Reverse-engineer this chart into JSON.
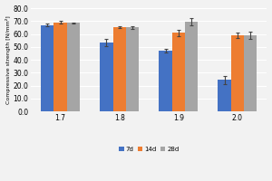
{
  "categories": [
    "1.7",
    "1.8",
    "1.9",
    "2.0"
  ],
  "series": {
    "7d": [
      67.0,
      53.5,
      47.0,
      24.5
    ],
    "14d": [
      69.0,
      65.5,
      61.0,
      59.0
    ],
    "28d": [
      68.5,
      65.0,
      69.5,
      59.0
    ]
  },
  "errors": {
    "7d": [
      1.2,
      3.0,
      1.5,
      3.0
    ],
    "14d": [
      1.0,
      0.8,
      2.5,
      2.0
    ],
    "28d": [
      0.5,
      0.8,
      2.5,
      2.5
    ]
  },
  "colors": {
    "7d": "#4472C4",
    "14d": "#ED7D31",
    "28d": "#A5A5A5"
  },
  "legend_labels": [
    "7d",
    "14d",
    "28d"
  ],
  "ylabel": "Compressive strength [N/mm²]",
  "ylim": [
    0.0,
    80.0
  ],
  "yticks": [
    0.0,
    10.0,
    20.0,
    30.0,
    40.0,
    50.0,
    60.0,
    70.0,
    80.0
  ],
  "bar_width": 0.22,
  "background_color": "#f2f2f2",
  "plot_bg_color": "#f2f2f2",
  "grid_color": "#ffffff",
  "figsize": [
    3.0,
    2.0
  ],
  "dpi": 100
}
